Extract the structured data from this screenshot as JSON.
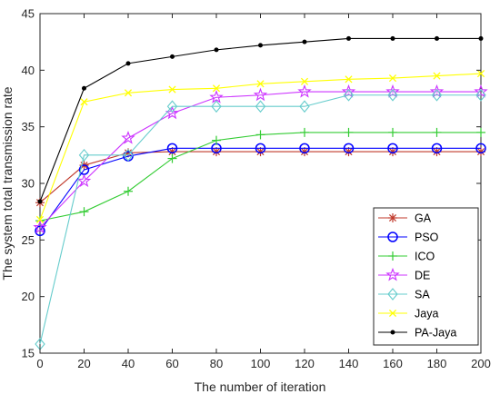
{
  "chart_data": {
    "type": "line",
    "title": "",
    "xlabel": "The number of iteration",
    "ylabel": "The system total transmission rate",
    "xlim": [
      0,
      200
    ],
    "ylim": [
      15,
      45
    ],
    "xticks": [
      0,
      20,
      40,
      60,
      80,
      100,
      120,
      140,
      160,
      180,
      200
    ],
    "yticks": [
      15,
      20,
      25,
      30,
      35,
      40,
      45
    ],
    "grid": false,
    "legend_position": "lower-right",
    "x": [
      0,
      20,
      40,
      60,
      80,
      100,
      120,
      140,
      160,
      180,
      200
    ],
    "series": [
      {
        "name": "GA",
        "color": "#c0392b",
        "marker": "asterisk",
        "values": [
          28.3,
          31.6,
          32.7,
          32.8,
          32.8,
          32.8,
          32.8,
          32.8,
          32.8,
          32.8,
          32.8
        ]
      },
      {
        "name": "PSO",
        "color": "#0000ff",
        "marker": "circle",
        "values": [
          25.8,
          31.2,
          32.4,
          33.1,
          33.1,
          33.1,
          33.1,
          33.1,
          33.1,
          33.1,
          33.1
        ]
      },
      {
        "name": "ICO",
        "color": "#33cc33",
        "marker": "plus",
        "values": [
          26.7,
          27.5,
          29.3,
          32.2,
          33.8,
          34.3,
          34.5,
          34.5,
          34.5,
          34.5,
          34.5
        ]
      },
      {
        "name": "DE",
        "color": "#cc33ff",
        "marker": "star",
        "values": [
          26.1,
          30.2,
          34.0,
          36.2,
          37.6,
          37.8,
          38.1,
          38.1,
          38.1,
          38.1,
          38.1
        ]
      },
      {
        "name": "SA",
        "color": "#66cccc",
        "marker": "diamond",
        "values": [
          15.8,
          32.5,
          32.5,
          36.8,
          36.8,
          36.8,
          36.8,
          37.8,
          37.8,
          37.8,
          37.8
        ]
      },
      {
        "name": "Jaya",
        "color": "#ffff00",
        "marker": "x",
        "values": [
          26.8,
          37.2,
          38.0,
          38.3,
          38.4,
          38.8,
          39.0,
          39.2,
          39.3,
          39.5,
          39.7
        ]
      },
      {
        "name": "PA-Jaya",
        "color": "#000000",
        "marker": "dot",
        "values": [
          28.4,
          38.4,
          40.6,
          41.2,
          41.8,
          42.2,
          42.5,
          42.8,
          42.8,
          42.8,
          42.8
        ]
      }
    ]
  }
}
